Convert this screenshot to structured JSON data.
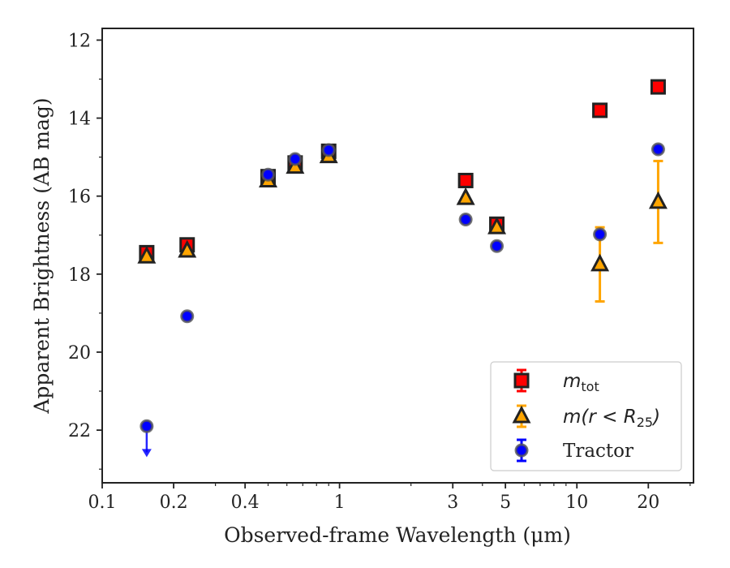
{
  "chart_data": {
    "type": "scatter",
    "title": "",
    "xlabel": "Observed-frame Wavelength (μm)",
    "ylabel": "Apparent Brightness (AB mag)",
    "xscale": "log",
    "xlim": [
      0.1,
      31
    ],
    "ylim": [
      23.35,
      11.7
    ],
    "y_inverted": true,
    "grid": false,
    "legend_position": "lower-right",
    "x_ticks": [
      {
        "value": 0.1,
        "label": "0.1"
      },
      {
        "value": 0.2,
        "label": "0.2"
      },
      {
        "value": 0.4,
        "label": "0.4"
      },
      {
        "value": 1,
        "label": "1"
      },
      {
        "value": 3,
        "label": "3"
      },
      {
        "value": 5,
        "label": "5"
      },
      {
        "value": 10,
        "label": "10"
      },
      {
        "value": 20,
        "label": "20"
      }
    ],
    "x_minor_ticks": [
      0.3,
      0.5,
      0.6,
      0.7,
      0.8,
      0.9,
      2,
      4,
      6,
      7,
      8,
      9,
      30
    ],
    "y_ticks": [
      {
        "value": 12,
        "label": "12"
      },
      {
        "value": 14,
        "label": "14"
      },
      {
        "value": 16,
        "label": "16"
      },
      {
        "value": 18,
        "label": "18"
      },
      {
        "value": 20,
        "label": "20"
      },
      {
        "value": 22,
        "label": "22"
      }
    ],
    "y_minor_ticks": [
      13,
      15,
      17,
      19,
      21,
      23
    ],
    "series": [
      {
        "name": "m_tot",
        "legend_main": "m",
        "legend_sub": "tot",
        "marker": "square",
        "color": "#ff0000",
        "edge_color": "#222222",
        "points": [
          {
            "x": 0.154,
            "y": 17.45
          },
          {
            "x": 0.228,
            "y": 17.25
          },
          {
            "x": 0.5,
            "y": 15.5
          },
          {
            "x": 0.65,
            "y": 15.15
          },
          {
            "x": 0.9,
            "y": 14.85
          },
          {
            "x": 3.4,
            "y": 15.6
          },
          {
            "x": 4.6,
            "y": 16.72
          },
          {
            "x": 12.5,
            "y": 13.8
          },
          {
            "x": 22.0,
            "y": 13.2
          }
        ]
      },
      {
        "name": "m(r < R25)",
        "legend_main": "m(r < R",
        "legend_sub": "25",
        "legend_suffix": ")",
        "marker": "triangle",
        "color": "#ffa500",
        "edge_color": "#222222",
        "points": [
          {
            "x": 0.154,
            "y": 17.55
          },
          {
            "x": 0.228,
            "y": 17.4
          },
          {
            "x": 0.5,
            "y": 15.6
          },
          {
            "x": 0.65,
            "y": 15.25
          },
          {
            "x": 0.9,
            "y": 14.98
          },
          {
            "x": 3.4,
            "y": 16.05
          },
          {
            "x": 4.6,
            "y": 16.8
          },
          {
            "x": 12.5,
            "y": 17.75,
            "yerr": 0.95
          },
          {
            "x": 22.0,
            "y": 16.15,
            "yerr": 1.05
          }
        ]
      },
      {
        "name": "Tractor",
        "marker": "circle",
        "color": "#0000ff",
        "edge_color": "#555555",
        "points": [
          {
            "x": 0.154,
            "y": 21.9,
            "upper_limit": true
          },
          {
            "x": 0.228,
            "y": 19.08
          },
          {
            "x": 0.5,
            "y": 15.45
          },
          {
            "x": 0.65,
            "y": 15.05
          },
          {
            "x": 0.9,
            "y": 14.82
          },
          {
            "x": 3.4,
            "y": 16.6
          },
          {
            "x": 4.6,
            "y": 17.28
          },
          {
            "x": 12.5,
            "y": 16.98
          },
          {
            "x": 22.0,
            "y": 14.8
          }
        ]
      }
    ]
  }
}
